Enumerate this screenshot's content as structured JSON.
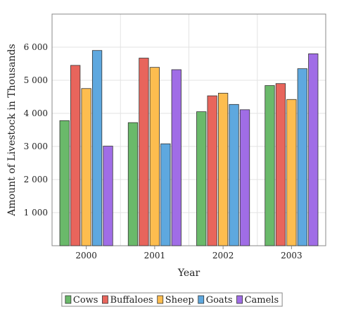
{
  "chart_data": {
    "type": "bar",
    "title": "",
    "xlabel": "Year",
    "ylabel": "Amount of Livestock in Thousands",
    "categories": [
      "2000",
      "2001",
      "2002",
      "2003"
    ],
    "ylim": [
      0,
      7000
    ],
    "yticks": [
      1000,
      2000,
      3000,
      4000,
      5000,
      6000
    ],
    "ytick_labels": [
      "1 000",
      "2 000",
      "3 000",
      "4 000",
      "5 000",
      "6 000"
    ],
    "grid": true,
    "legend_position": "bottom",
    "series": [
      {
        "name": "Cows",
        "color": "#6ab96a",
        "values": [
          3780,
          3720,
          4050,
          4840
        ]
      },
      {
        "name": "Buffaloes",
        "color": "#e8655c",
        "values": [
          5450,
          5670,
          4530,
          4900
        ]
      },
      {
        "name": "Sheep",
        "color": "#fdbd4f",
        "values": [
          4750,
          5390,
          4610,
          4420
        ]
      },
      {
        "name": "Goats",
        "color": "#5ea8df",
        "values": [
          5900,
          3080,
          4270,
          5350
        ]
      },
      {
        "name": "Camels",
        "color": "#a06de6",
        "values": [
          3010,
          5320,
          4110,
          5800
        ]
      }
    ]
  }
}
